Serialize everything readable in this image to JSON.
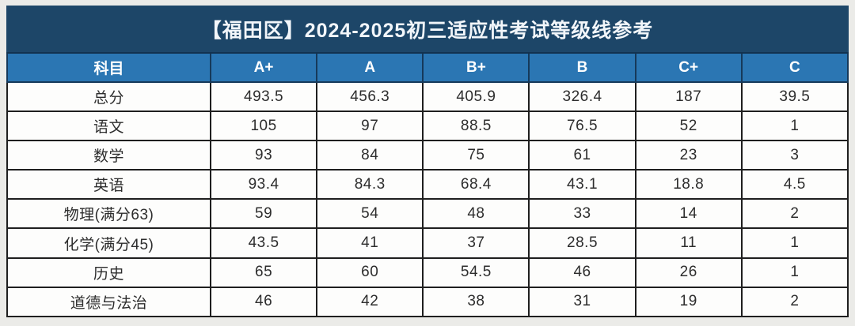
{
  "page": {
    "title": "【福田区】2024-2025初三适应性考试等级线参考"
  },
  "colors": {
    "page_bg": "#ebebe8",
    "title_bar_bg": "#1d4668",
    "title_text": "#f2f6fa",
    "header_bg": "#2b76b3",
    "header_text": "#ffffff",
    "header_border": "#16395a",
    "cell_bg": "#fdfdfc",
    "cell_text": "#2d2d2d",
    "cell_border": "#1f1f1f"
  },
  "table": {
    "columns": [
      "科目",
      "A+",
      "A",
      "B+",
      "B",
      "C+",
      "C"
    ],
    "rows": [
      {
        "subject": "总分",
        "values": [
          "493.5",
          "456.3",
          "405.9",
          "326.4",
          "187",
          "39.5"
        ]
      },
      {
        "subject": "语文",
        "values": [
          "105",
          "97",
          "88.5",
          "76.5",
          "52",
          "1"
        ]
      },
      {
        "subject": "数学",
        "values": [
          "93",
          "84",
          "75",
          "61",
          "23",
          "3"
        ]
      },
      {
        "subject": "英语",
        "values": [
          "93.4",
          "84.3",
          "68.4",
          "43.1",
          "18.8",
          "4.5"
        ]
      },
      {
        "subject": "物理(满分63)",
        "values": [
          "59",
          "54",
          "48",
          "33",
          "14",
          "2"
        ]
      },
      {
        "subject": "化学(满分45)",
        "values": [
          "43.5",
          "41",
          "37",
          "28.5",
          "11",
          "1"
        ]
      },
      {
        "subject": "历史",
        "values": [
          "65",
          "60",
          "54.5",
          "46",
          "26",
          "1"
        ]
      },
      {
        "subject": "道德与法治",
        "values": [
          "46",
          "42",
          "38",
          "31",
          "19",
          "2"
        ]
      }
    ]
  },
  "chart_data": {
    "type": "table",
    "title": "【福田区】2024-2025初三适应性考试等级线参考",
    "columns": [
      "科目",
      "A+",
      "A",
      "B+",
      "B",
      "C+",
      "C"
    ],
    "rows": [
      [
        "总分",
        493.5,
        456.3,
        405.9,
        326.4,
        187,
        39.5
      ],
      [
        "语文",
        105,
        97,
        88.5,
        76.5,
        52,
        1
      ],
      [
        "数学",
        93,
        84,
        75,
        61,
        23,
        3
      ],
      [
        "英语",
        93.4,
        84.3,
        68.4,
        43.1,
        18.8,
        4.5
      ],
      [
        "物理(满分63)",
        59,
        54,
        48,
        33,
        14,
        2
      ],
      [
        "化学(满分45)",
        43.5,
        41,
        37,
        28.5,
        11,
        1
      ],
      [
        "历史",
        65,
        60,
        54.5,
        46,
        26,
        1
      ],
      [
        "道德与法治",
        46,
        42,
        38,
        31,
        19,
        2
      ]
    ],
    "layout": {
      "header_position": "top",
      "grid": true,
      "legend": "none"
    }
  }
}
